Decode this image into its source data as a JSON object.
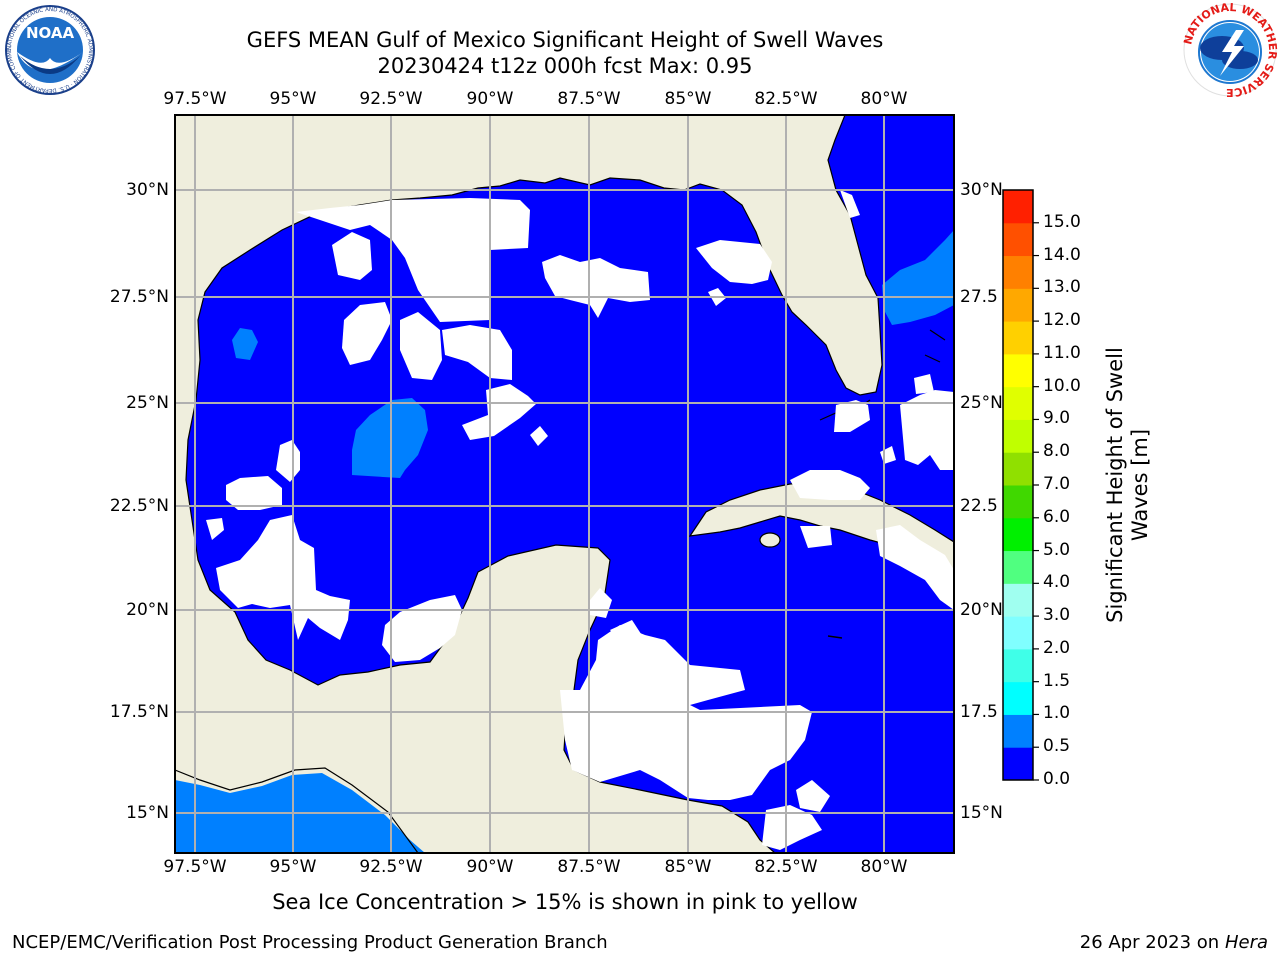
{
  "title_line1": "GEFS MEAN Gulf of Mexico Significant Height of Swell Waves",
  "title_line2": "20230424 t12z 000h fcst   Max: 0.95",
  "caption": "Sea Ice Concentration > 15% is shown in pink to yellow",
  "footer_left": "NCEP/EMC/Verification Post Processing Product Generation Branch",
  "footer_date": "26 Apr 2023 on ",
  "footer_machine": "Hera",
  "logos": {
    "noaa": {
      "text": "NOAA",
      "ring": "NATIONAL OCEANIC AND ATMOSPHERIC ADMINISTRATION · U.S. DEPARTMENT OF COMMERCE"
    },
    "nws": {
      "ring": "NATIONAL WEATHER SERVICE"
    }
  },
  "map": {
    "lon_ticks": [
      "97.5°W",
      "95°W",
      "92.5°W",
      "90°W",
      "87.5°W",
      "85°W",
      "82.5°W",
      "80°W"
    ],
    "lat_ticks_left": [
      "30°N",
      "27.5°N",
      "25°N",
      "22.5°N",
      "20°N",
      "17.5°N",
      "15°N"
    ],
    "lat_ticks_right": [
      "30°N",
      "27.5",
      "25°N",
      "22.5",
      "20°N",
      "17.5",
      "15°N"
    ],
    "colors": {
      "land": "#efeedd",
      "gridline": "#b0b0b0",
      "coast": "#000000",
      "swell_low": "#0000ff",
      "swell_mid": "#0080ff",
      "no_data": "#ffffff"
    }
  },
  "colorbar": {
    "label": "Significant Height of Swell Waves [m]",
    "levels": [
      "0.0",
      "0.5",
      "1.0",
      "1.5",
      "2.0",
      "2.5",
      "3.0",
      "4.0",
      "5.0",
      "6.0",
      "7.0",
      "8.0",
      "9.0",
      "10.0",
      "11.0",
      "12.0",
      "13.0",
      "14.0",
      "15.0"
    ],
    "tick_labels": [
      "0.0",
      "0.5",
      "1.0",
      "1.5",
      "2.0",
      "3.0",
      "4.0",
      "5.0",
      "6.0",
      "7.0",
      "8.0",
      "9.0",
      "10.0",
      "11.0",
      "12.0",
      "13.0",
      "14.0",
      "15.0"
    ],
    "colors": [
      "#0000ff",
      "#0080ff",
      "#00ffff",
      "#3fffe8",
      "#80ffff",
      "#a0fff0",
      "#50ff80",
      "#00f000",
      "#40d800",
      "#90e000",
      "#c0ff00",
      "#e0ff00",
      "#ffff00",
      "#ffd000",
      "#ffa800",
      "#ff8000",
      "#ff5000",
      "#ff2000"
    ]
  }
}
